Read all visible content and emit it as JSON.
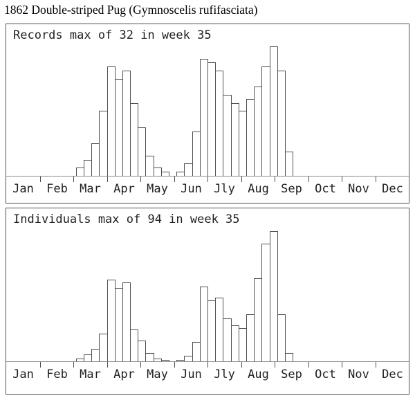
{
  "title": "1862 Double-striped Pug (Gymnoscelis rufifasciata)",
  "colors": {
    "background": "#ffffff",
    "panel_border": "#4d4d4d",
    "bar_fill": "#ffffff",
    "bar_stroke": "#4f4f4f",
    "axis_line": "#8a8a8a",
    "tick": "#4d4d4d",
    "text": "#1f1f1f",
    "title_text": "#000000"
  },
  "chart_data": [
    {
      "type": "bar",
      "panel": "records",
      "title": "Records max of 32 in week 35",
      "max_value": 32,
      "max_week": 35,
      "x_axis": "week of year",
      "xlim": [
        1,
        52
      ],
      "x_tick_labels": [
        "Jan",
        "Feb",
        "Mar",
        "Apr",
        "May",
        "Jun",
        "Jly",
        "Aug",
        "Sep",
        "Oct",
        "Nov",
        "Dec"
      ],
      "weeks": [
        10,
        11,
        12,
        13,
        14,
        15,
        16,
        17,
        18,
        19,
        20,
        21,
        22,
        23,
        24,
        25,
        26,
        27,
        28,
        29,
        30,
        31,
        32,
        33,
        34,
        35,
        36,
        37
      ],
      "values": [
        2,
        4,
        8,
        16,
        27,
        24,
        26,
        18,
        12,
        5,
        2,
        1,
        0,
        1,
        3,
        11,
        29,
        28,
        26,
        20,
        18,
        16,
        19,
        22,
        27,
        32,
        26,
        6
      ],
      "weeks_not_listed_value": 0,
      "legend": "none",
      "grid": "off"
    },
    {
      "type": "bar",
      "panel": "individuals",
      "title": "Individuals max of 94 in week 35",
      "max_value": 94,
      "max_week": 35,
      "x_axis": "week of year",
      "xlim": [
        1,
        52
      ],
      "x_tick_labels": [
        "Jan",
        "Feb",
        "Mar",
        "Apr",
        "May",
        "Jun",
        "Jly",
        "Aug",
        "Sep",
        "Oct",
        "Nov",
        "Dec"
      ],
      "weeks": [
        10,
        11,
        12,
        13,
        14,
        15,
        16,
        17,
        18,
        19,
        20,
        21,
        22,
        23,
        24,
        25,
        26,
        27,
        28,
        29,
        30,
        31,
        32,
        33,
        34,
        35,
        36,
        37
      ],
      "values": [
        2,
        5,
        9,
        20,
        59,
        53,
        57,
        23,
        15,
        6,
        2,
        1,
        0,
        1,
        4,
        14,
        54,
        44,
        46,
        31,
        26,
        24,
        34,
        60,
        85,
        94,
        34,
        6
      ],
      "weeks_not_listed_value": 0,
      "legend": "none",
      "grid": "off"
    }
  ]
}
